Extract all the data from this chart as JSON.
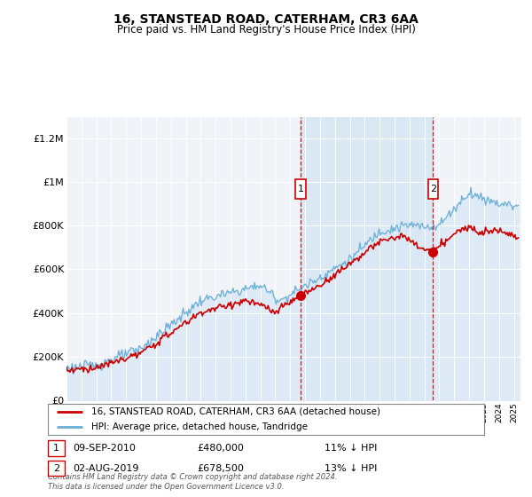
{
  "title": "16, STANSTEAD ROAD, CATERHAM, CR3 6AA",
  "subtitle": "Price paid vs. HM Land Registry's House Price Index (HPI)",
  "footer": "Contains HM Land Registry data © Crown copyright and database right 2024.\nThis data is licensed under the Open Government Licence v3.0.",
  "legend_line1": "16, STANSTEAD ROAD, CATERHAM, CR3 6AA (detached house)",
  "legend_line2": "HPI: Average price, detached house, Tandridge",
  "annotation1_date": "09-SEP-2010",
  "annotation1_price": "£480,000",
  "annotation1_hpi": "11% ↓ HPI",
  "annotation2_date": "02-AUG-2019",
  "annotation2_price": "£678,500",
  "annotation2_hpi": "13% ↓ HPI",
  "hpi_fill_color": "#dae8f5",
  "hpi_line_color": "#6aaed6",
  "price_color": "#cc0000",
  "background_color": "#ffffff",
  "plot_bg_color": "#f0f4f8",
  "grid_color": "#ffffff",
  "shade_color": "#d0e4f0",
  "annotation_line_color": "#cc0000",
  "ylim": [
    0,
    1300000
  ],
  "yticks": [
    0,
    200000,
    400000,
    600000,
    800000,
    1000000,
    1200000
  ],
  "ytick_labels": [
    "£0",
    "£200K",
    "£400K",
    "£600K",
    "£800K",
    "£1M",
    "£1.2M"
  ],
  "year_start": 1995,
  "year_end": 2025,
  "sale1_year": 2010.69,
  "sale1_price": 480000,
  "sale2_year": 2019.58,
  "sale2_price": 678500
}
